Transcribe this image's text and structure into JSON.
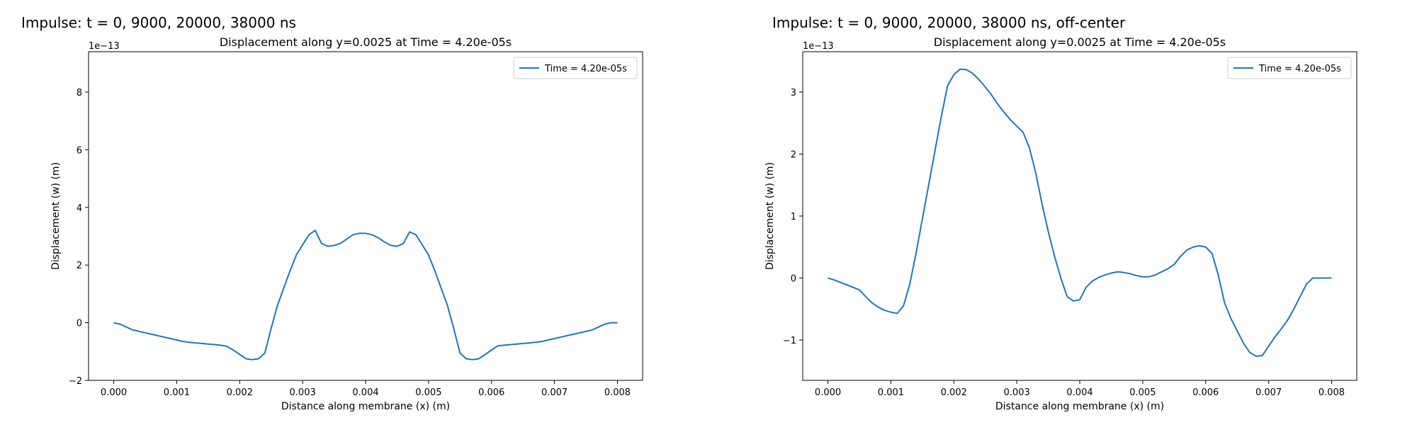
{
  "figures": [
    {
      "title": "Impulse: t = 0, 9000, 20000, 38000 ns"
    },
    {
      "title": "Impulse: t = 0, 9000, 20000, 38000 ns, off-center"
    }
  ],
  "chart_data": [
    {
      "type": "line",
      "title": "Displacement along y=0.0025 at Time = 4.20e-05s",
      "xlabel": "Distance along membrane (x) (m)",
      "ylabel": "Displacement (w) (m)",
      "scale_label": "1e−13",
      "xlim": [
        -0.0004,
        0.0084
      ],
      "ylim": [
        -2.0,
        9.4
      ],
      "xticks": [
        0.0,
        0.001,
        0.002,
        0.003,
        0.004,
        0.005,
        0.006,
        0.007,
        0.008
      ],
      "xtick_labels": [
        "0.000",
        "0.001",
        "0.002",
        "0.003",
        "0.004",
        "0.005",
        "0.006",
        "0.007",
        "0.008"
      ],
      "yticks": [
        -2,
        0,
        2,
        4,
        6,
        8
      ],
      "ytick_labels": [
        "−2",
        "0",
        "2",
        "4",
        "6",
        "8"
      ],
      "grid": false,
      "legend": "top-right",
      "series": [
        {
          "name": "Time = 4.20e-05s",
          "color": "#1f77b4",
          "x": [
            0.0,
            0.0001,
            0.0002,
            0.0003,
            0.0004,
            0.0005,
            0.0006,
            0.0007,
            0.0008,
            0.0009,
            0.001,
            0.0011,
            0.0012,
            0.0013,
            0.0014,
            0.0015,
            0.0016,
            0.0017,
            0.0018,
            0.0019,
            0.002,
            0.0021,
            0.0022,
            0.0023,
            0.0024,
            0.0025,
            0.0026,
            0.0027,
            0.0028,
            0.0029,
            0.003,
            0.0031,
            0.0032,
            0.0033,
            0.0034,
            0.0035,
            0.0036,
            0.0037,
            0.0038,
            0.0039,
            0.004,
            0.0041,
            0.0042,
            0.0043,
            0.0044,
            0.0045,
            0.0046,
            0.0047,
            0.0048,
            0.0049,
            0.005,
            0.0051,
            0.0052,
            0.0053,
            0.0054,
            0.0055,
            0.0056,
            0.0057,
            0.0058,
            0.0059,
            0.006,
            0.0061,
            0.0062,
            0.0063,
            0.0064,
            0.0065,
            0.0066,
            0.0067,
            0.0068,
            0.0069,
            0.007,
            0.0071,
            0.0072,
            0.0073,
            0.0074,
            0.0075,
            0.0076,
            0.0077,
            0.0078,
            0.0079,
            0.008
          ],
          "y": [
            0.0,
            -0.05,
            -0.15,
            -0.25,
            -0.3,
            -0.35,
            -0.4,
            -0.45,
            -0.5,
            -0.55,
            -0.6,
            -0.65,
            -0.68,
            -0.7,
            -0.72,
            -0.74,
            -0.76,
            -0.78,
            -0.82,
            -0.95,
            -1.1,
            -1.25,
            -1.28,
            -1.25,
            -1.05,
            -0.2,
            0.6,
            1.2,
            1.8,
            2.35,
            2.7,
            3.05,
            3.2,
            2.75,
            2.65,
            2.68,
            2.75,
            2.9,
            3.05,
            3.1,
            3.1,
            3.05,
            2.95,
            2.8,
            2.68,
            2.65,
            2.75,
            3.15,
            3.05,
            2.7,
            2.35,
            1.8,
            1.2,
            0.6,
            -0.2,
            -1.05,
            -1.25,
            -1.28,
            -1.25,
            -1.1,
            -0.95,
            -0.8,
            -0.78,
            -0.76,
            -0.74,
            -0.72,
            -0.7,
            -0.68,
            -0.65,
            -0.6,
            -0.55,
            -0.5,
            -0.45,
            -0.4,
            -0.35,
            -0.3,
            -0.25,
            -0.15,
            -0.05,
            0.0,
            0.0
          ]
        }
      ]
    },
    {
      "type": "line",
      "title": "Displacement along y=0.0025 at Time = 4.20e-05s",
      "xlabel": "Distance along membrane (x) (m)",
      "ylabel": "Displacement (w) (m)",
      "scale_label": "1e−13",
      "xlim": [
        -0.0004,
        0.0084
      ],
      "ylim": [
        -1.65,
        3.65
      ],
      "xticks": [
        0.0,
        0.001,
        0.002,
        0.003,
        0.004,
        0.005,
        0.006,
        0.007,
        0.008
      ],
      "xtick_labels": [
        "0.000",
        "0.001",
        "0.002",
        "0.003",
        "0.004",
        "0.005",
        "0.006",
        "0.007",
        "0.008"
      ],
      "yticks": [
        -1,
        0,
        1,
        2,
        3
      ],
      "ytick_labels": [
        "−1",
        "0",
        "1",
        "2",
        "3"
      ],
      "grid": false,
      "legend": "top-right",
      "series": [
        {
          "name": "Time = 4.20e-05s",
          "color": "#1f77b4",
          "x": [
            0.0,
            0.0001,
            0.0002,
            0.0003,
            0.0004,
            0.0005,
            0.0006,
            0.0007,
            0.0008,
            0.0009,
            0.001,
            0.0011,
            0.0012,
            0.0013,
            0.0014,
            0.0015,
            0.0016,
            0.0017,
            0.0018,
            0.0019,
            0.002,
            0.0021,
            0.0022,
            0.0023,
            0.0024,
            0.0025,
            0.0026,
            0.0027,
            0.0028,
            0.0029,
            0.003,
            0.0031,
            0.0032,
            0.0033,
            0.0034,
            0.0035,
            0.0036,
            0.0037,
            0.0038,
            0.0039,
            0.004,
            0.0041,
            0.0042,
            0.0043,
            0.0044,
            0.0045,
            0.0046,
            0.0047,
            0.0048,
            0.0049,
            0.005,
            0.0051,
            0.0052,
            0.0053,
            0.0054,
            0.0055,
            0.0056,
            0.0057,
            0.0058,
            0.0059,
            0.006,
            0.0061,
            0.0062,
            0.0063,
            0.0064,
            0.0065,
            0.0066,
            0.0067,
            0.0068,
            0.0069,
            0.007,
            0.0071,
            0.0072,
            0.0073,
            0.0074,
            0.0075,
            0.0076,
            0.0077,
            0.0078,
            0.0079,
            0.008
          ],
          "y": [
            0.0,
            -0.03,
            -0.07,
            -0.11,
            -0.15,
            -0.19,
            -0.3,
            -0.4,
            -0.47,
            -0.52,
            -0.55,
            -0.57,
            -0.45,
            -0.1,
            0.4,
            0.95,
            1.5,
            2.05,
            2.6,
            3.1,
            3.28,
            3.37,
            3.36,
            3.3,
            3.2,
            3.08,
            2.95,
            2.8,
            2.67,
            2.55,
            2.45,
            2.35,
            2.1,
            1.7,
            1.2,
            0.75,
            0.35,
            0.0,
            -0.3,
            -0.37,
            -0.35,
            -0.15,
            -0.05,
            0.01,
            0.05,
            0.08,
            0.1,
            0.09,
            0.07,
            0.04,
            0.02,
            0.02,
            0.05,
            0.1,
            0.15,
            0.22,
            0.35,
            0.45,
            0.5,
            0.52,
            0.5,
            0.4,
            0.05,
            -0.4,
            -0.65,
            -0.85,
            -1.05,
            -1.2,
            -1.26,
            -1.25,
            -1.1,
            -0.95,
            -0.82,
            -0.68,
            -0.5,
            -0.3,
            -0.1,
            0.0,
            0.0,
            0.0,
            0.0
          ]
        }
      ]
    }
  ]
}
